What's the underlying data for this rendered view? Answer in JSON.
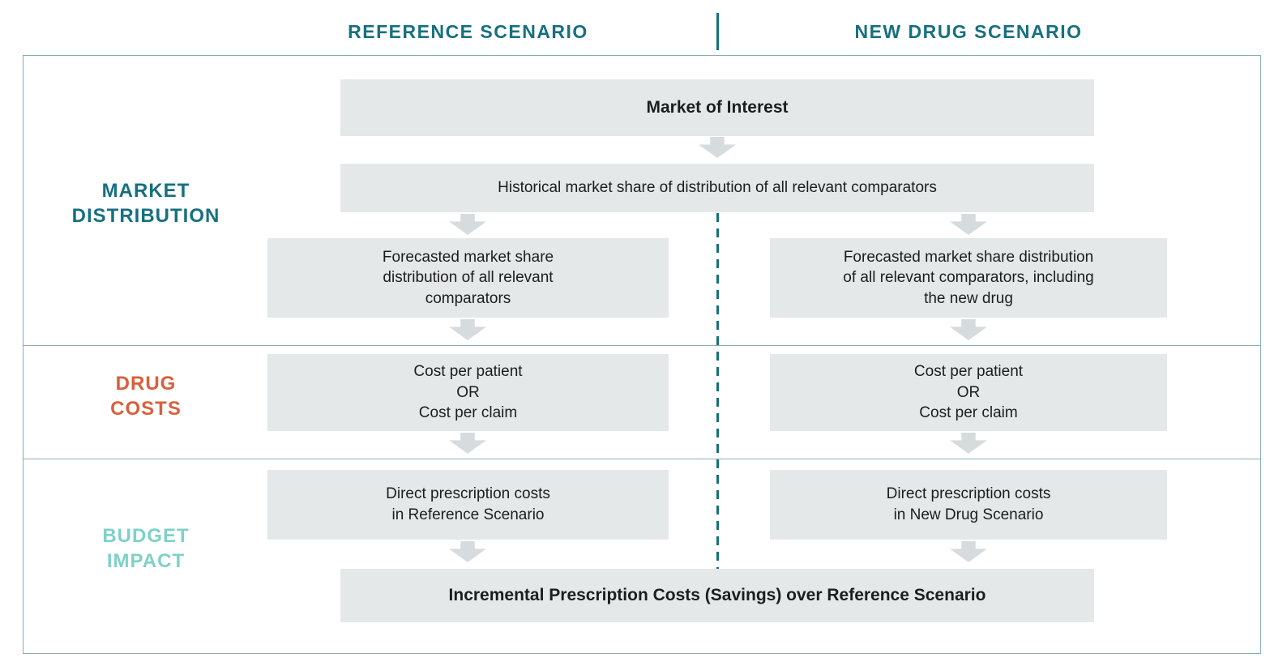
{
  "header": {
    "reference_label": "REFERENCE SCENARIO",
    "new_drug_label": "NEW DRUG SCENARIO"
  },
  "row_labels": {
    "market_distribution": "MARKET\nDISTRIBUTION",
    "drug_costs": "DRUG\nCOSTS",
    "budget_impact": "BUDGET\nIMPACT"
  },
  "boxes": {
    "market_of_interest": "Market of Interest",
    "historical_share": "Historical market share of distribution of all relevant comparators",
    "forecast_reference": "Forecasted market share\ndistribution of all relevant\ncomparators",
    "forecast_new_drug": "Forecasted market share distribution\nof all relevant comparators, including\nthe new drug",
    "cost_reference": "Cost per patient\nOR\nCost per claim",
    "cost_new_drug": "Cost per patient\nOR\nCost per claim",
    "direct_costs_reference": "Direct prescription costs\nin Reference Scenario",
    "direct_costs_new_drug": "Direct prescription costs\nin New Drug Scenario",
    "incremental": "Incremental Prescription Costs (Savings) over Reference Scenario"
  },
  "colors": {
    "teal": "#16707f",
    "orange": "#d95f3c",
    "aqua": "#7fd1c8",
    "box_bg": "#e4e8e9",
    "arrow": "#d6dcdd",
    "frame": "#86aeb4",
    "text": "#1d1d1d"
  }
}
